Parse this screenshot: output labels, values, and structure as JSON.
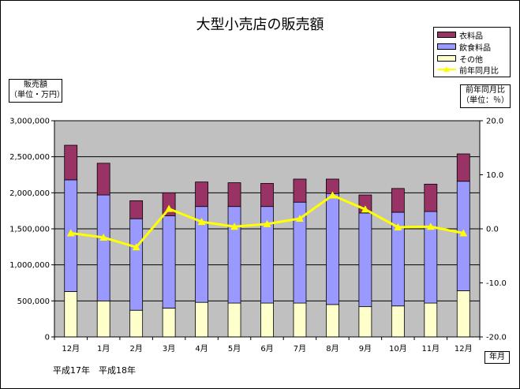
{
  "chart_data": {
    "type": "bar",
    "title": "大型小売店の販売額",
    "left_axis_label": [
      "販売額",
      "（単位・万円）"
    ],
    "right_axis_label": [
      "前年同月比",
      "（単位：％）"
    ],
    "x_unit_label": "年月",
    "era_labels": "平成17年　平成18年",
    "categories": [
      "12月",
      "1月",
      "2月",
      "3月",
      "4月",
      "5月",
      "6月",
      "7月",
      "8月",
      "9月",
      "10月",
      "11月",
      "12月"
    ],
    "ylim": [
      0,
      3000000
    ],
    "y_ticks": [
      "0",
      "500,000",
      "1,000,000",
      "1,500,000",
      "2,000,000",
      "2,500,000",
      "3,000,000"
    ],
    "y2lim": [
      -20,
      20
    ],
    "y2_ticks": [
      "-20.0",
      "-10.0",
      "0.0",
      "10.0",
      "20.0"
    ],
    "grid": true,
    "legend_position": "top-right",
    "series": [
      {
        "name": "衣料品",
        "kind": "bar",
        "color": "#993366",
        "values": [
          480000,
          440000,
          250000,
          320000,
          340000,
          330000,
          320000,
          320000,
          200000,
          250000,
          330000,
          380000,
          380000
        ]
      },
      {
        "name": "飲食料品",
        "kind": "bar",
        "color": "#9999ff",
        "values": [
          1550000,
          1470000,
          1270000,
          1280000,
          1330000,
          1340000,
          1340000,
          1400000,
          1540000,
          1300000,
          1300000,
          1270000,
          1520000
        ]
      },
      {
        "name": "その他",
        "kind": "bar",
        "color": "#ffffcc",
        "values": [
          630000,
          500000,
          370000,
          400000,
          480000,
          470000,
          470000,
          470000,
          450000,
          420000,
          430000,
          470000,
          640000
        ]
      },
      {
        "name": "前年同月比",
        "kind": "line",
        "color": "#ffff00",
        "axis": "right",
        "values": [
          -0.8,
          -1.6,
          -3.4,
          3.7,
          1.3,
          0.4,
          0.9,
          1.9,
          6.2,
          3.6,
          0.3,
          0.4,
          -0.8
        ]
      }
    ]
  }
}
